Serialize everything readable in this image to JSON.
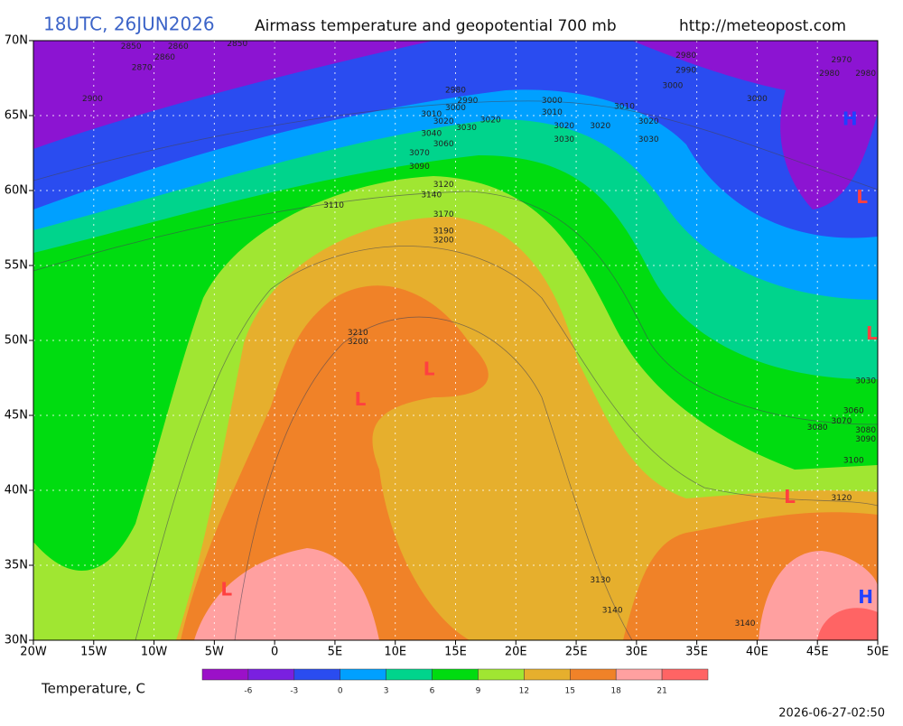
{
  "header": {
    "time": "18UTC, 26JUN2026",
    "title": "Airmass temperature and geopotential 700 mb",
    "url": "http://meteopost.com"
  },
  "map": {
    "lonlim": [
      -20,
      50
    ],
    "latlim": [
      30,
      70
    ],
    "lon_ticks": [
      {
        "value": -20,
        "label": "20W"
      },
      {
        "value": -15,
        "label": "15W"
      },
      {
        "value": -10,
        "label": "10W"
      },
      {
        "value": -5,
        "label": "5W"
      },
      0,
      {
        "value": 5,
        "label": "5E"
      },
      {
        "value": 10,
        "label": "10E"
      },
      {
        "value": 15,
        "label": "15E"
      },
      {
        "value": 20,
        "label": "20E"
      },
      {
        "value": 25,
        "label": "25E"
      },
      {
        "value": 30,
        "label": "30E"
      },
      {
        "value": 35,
        "label": "35E"
      },
      {
        "value": 40,
        "label": "40E"
      },
      {
        "value": 45,
        "label": "45E"
      },
      {
        "value": 50,
        "label": "50E"
      }
    ],
    "lat_ticks": [
      {
        "value": 70,
        "label": "70N"
      },
      {
        "value": 65,
        "label": "65N"
      },
      {
        "value": 60,
        "label": "60N"
      },
      {
        "value": 55,
        "label": "55N"
      },
      {
        "value": 50,
        "label": "50N"
      },
      {
        "value": 45,
        "label": "45N"
      },
      {
        "value": 40,
        "label": "40N"
      },
      {
        "value": 35,
        "label": "35N"
      },
      {
        "value": 30,
        "label": "30N"
      }
    ],
    "contour_labels": [
      {
        "lon": -11.9,
        "lat": 69.6,
        "value": 2850
      },
      {
        "lon": -8.0,
        "lat": 69.6,
        "value": 2860
      },
      {
        "lon": -3.1,
        "lat": 69.8,
        "value": 2850
      },
      {
        "lon": -9.1,
        "lat": 68.9,
        "value": 2860
      },
      {
        "lon": -11.0,
        "lat": 68.2,
        "value": 2870
      },
      {
        "lon": -15.1,
        "lat": 66.1,
        "value": 2900
      },
      {
        "lon": 15.0,
        "lat": 66.7,
        "value": 2980
      },
      {
        "lon": 16.0,
        "lat": 66.0,
        "value": 2990
      },
      {
        "lon": 15.0,
        "lat": 65.5,
        "value": 3000
      },
      {
        "lon": 13.0,
        "lat": 65.1,
        "value": 3010
      },
      {
        "lon": 14.0,
        "lat": 64.6,
        "value": 3020
      },
      {
        "lon": 15.9,
        "lat": 64.2,
        "value": 3030
      },
      {
        "lon": 17.9,
        "lat": 64.7,
        "value": 3020
      },
      {
        "lon": 13.0,
        "lat": 63.8,
        "value": 3040
      },
      {
        "lon": 14.0,
        "lat": 63.1,
        "value": 3060
      },
      {
        "lon": 12.0,
        "lat": 62.5,
        "value": 3070
      },
      {
        "lon": 12.0,
        "lat": 61.6,
        "value": 3090
      },
      {
        "lon": 14.0,
        "lat": 60.4,
        "value": 3120
      },
      {
        "lon": 13.0,
        "lat": 59.7,
        "value": 3140
      },
      {
        "lon": 4.9,
        "lat": 59.0,
        "value": 3110
      },
      {
        "lon": 14.0,
        "lat": 58.4,
        "value": 3170
      },
      {
        "lon": 14.0,
        "lat": 57.3,
        "value": 3190
      },
      {
        "lon": 14.0,
        "lat": 56.7,
        "value": 3200
      },
      {
        "lon": 6.9,
        "lat": 50.5,
        "value": 3210
      },
      {
        "lon": 6.9,
        "lat": 49.9,
        "value": 3200
      },
      {
        "lon": 23.0,
        "lat": 66.0,
        "value": 3000
      },
      {
        "lon": 23.0,
        "lat": 65.2,
        "value": 3010
      },
      {
        "lon": 24.0,
        "lat": 64.3,
        "value": 3020
      },
      {
        "lon": 24.0,
        "lat": 63.4,
        "value": 3030
      },
      {
        "lon": 27.0,
        "lat": 64.3,
        "value": 3020
      },
      {
        "lon": 29.0,
        "lat": 65.6,
        "value": 3010
      },
      {
        "lon": 31.0,
        "lat": 64.6,
        "value": 3020
      },
      {
        "lon": 31.0,
        "lat": 63.4,
        "value": 3030
      },
      {
        "lon": 34.1,
        "lat": 69.0,
        "value": 2980
      },
      {
        "lon": 34.1,
        "lat": 68.0,
        "value": 2990
      },
      {
        "lon": 33.0,
        "lat": 67.0,
        "value": 3000
      },
      {
        "lon": 40.0,
        "lat": 66.1,
        "value": 3000
      },
      {
        "lon": 47.0,
        "lat": 68.7,
        "value": 2970
      },
      {
        "lon": 46.0,
        "lat": 67.8,
        "value": 2980
      },
      {
        "lon": 49.0,
        "lat": 67.8,
        "value": 2980
      },
      {
        "lon": 49.0,
        "lat": 47.3,
        "value": 3030
      },
      {
        "lon": 48.0,
        "lat": 45.3,
        "value": 3060
      },
      {
        "lon": 47.0,
        "lat": 44.6,
        "value": 3070
      },
      {
        "lon": 45.0,
        "lat": 44.2,
        "value": 3080
      },
      {
        "lon": 49.0,
        "lat": 44.0,
        "value": 3080
      },
      {
        "lon": 49.0,
        "lat": 43.4,
        "value": 3090
      },
      {
        "lon": 48.0,
        "lat": 42.0,
        "value": 3100
      },
      {
        "lon": 47.0,
        "lat": 39.5,
        "value": 3120
      },
      {
        "lon": 27.0,
        "lat": 34.0,
        "value": 3130
      },
      {
        "lon": 28.0,
        "lat": 32.0,
        "value": 3140
      },
      {
        "lon": 39.0,
        "lat": 31.1,
        "value": 3140
      }
    ],
    "pressure_centers": [
      {
        "lon": 48.7,
        "lat": 59.5,
        "label": "L"
      },
      {
        "lon": 49.5,
        "lat": 50.4,
        "label": "L"
      },
      {
        "lon": 47.7,
        "lat": 64.7,
        "label": "H"
      },
      {
        "lon": 12.8,
        "lat": 48.0,
        "label": "L"
      },
      {
        "lon": 7.1,
        "lat": 46.0,
        "label": "L"
      },
      {
        "lon": 42.7,
        "lat": 39.5,
        "label": "L"
      },
      {
        "lon": -4.0,
        "lat": 33.3,
        "label": "L"
      },
      {
        "lon": 49.0,
        "lat": 32.8,
        "label": "H"
      }
    ]
  },
  "colorbar": {
    "title": "Temperature, C",
    "ticks": [
      -6,
      -3,
      0,
      3,
      6,
      9,
      12,
      15,
      18,
      21
    ],
    "colors": [
      "#9b10c8",
      "#7a20e0",
      "#2a4cf0",
      "#00a0ff",
      "#00d48c",
      "#00dc10",
      "#a0e632",
      "#e6af2d",
      "#f08228",
      "#ffa0a0",
      "#ff6464"
    ]
  },
  "footer": {
    "timestamp": "2026-06-27-02:50"
  }
}
